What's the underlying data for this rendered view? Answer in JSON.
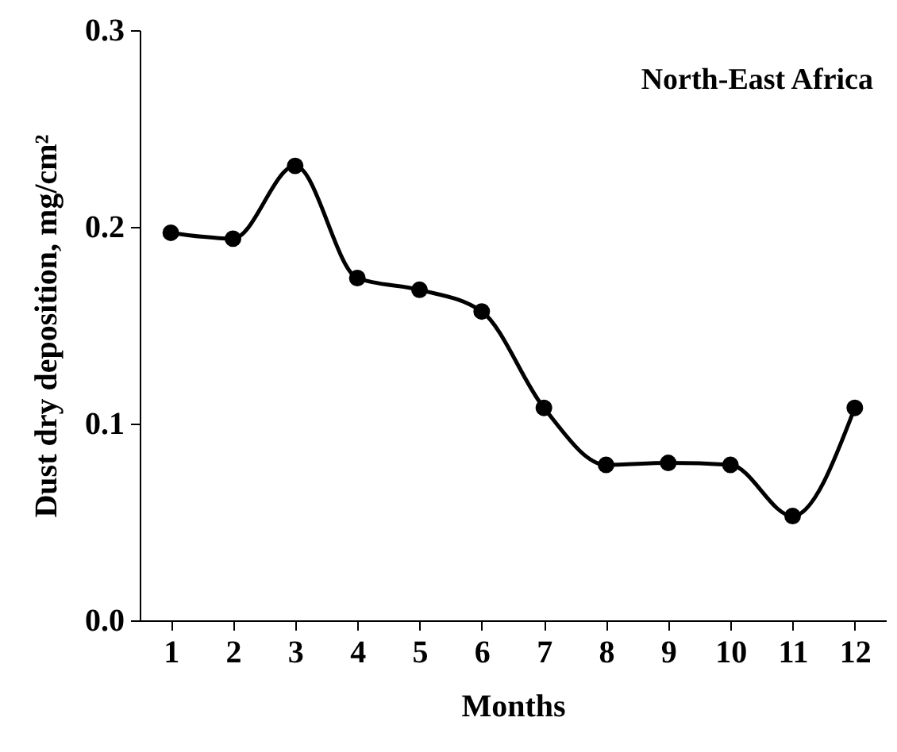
{
  "chart_data": {
    "type": "line",
    "xlabel": "Months",
    "ylabel": "Dust dry deposition,  mg/cm²",
    "annotations": [
      "North-East Africa"
    ],
    "x": [
      1,
      2,
      3,
      4,
      5,
      6,
      7,
      8,
      9,
      10,
      11,
      12
    ],
    "series": [
      {
        "color": "#000000",
        "values": [
          0.197,
          0.194,
          0.231,
          0.174,
          0.168,
          0.157,
          0.108,
          0.079,
          0.08,
          0.079,
          0.053,
          0.108
        ]
      }
    ],
    "xlim": [
      0.5,
      12.5
    ],
    "xticks": [
      1,
      2,
      3,
      4,
      5,
      6,
      7,
      8,
      9,
      10,
      11,
      12
    ],
    "ylim": [
      0,
      0.3
    ],
    "yticks": [
      {
        "value": 0,
        "label": "0.0"
      },
      {
        "value": 0.1,
        "label": "0.1"
      },
      {
        "value": 0.2,
        "label": "0.2"
      },
      {
        "value": 0.3,
        "label": "0.3"
      }
    ],
    "grid": false,
    "marker": "circle",
    "line_style": "solid"
  }
}
